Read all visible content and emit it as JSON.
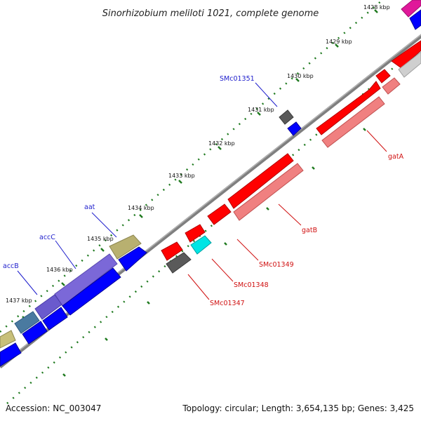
{
  "title": "Sinorhizobium meliloti 1021, complete genome",
  "footer": {
    "accession": "Accession: NC_003047",
    "summary": "Topology: circular; Length: 3,654,135 bp; Genes: 3,425"
  },
  "ticks": [
    "1428 kbp",
    "1429 kbp",
    "1430 kbp",
    "1431 kbp",
    "1432 kbp",
    "1433 kbp",
    "1434 kbp",
    "1435 kbp",
    "1436 kbp",
    "1437 kbp"
  ],
  "gene_labels": {
    "forward": [
      "SMc01351",
      "aat",
      "accC",
      "accB"
    ],
    "reverse": [
      "gatA",
      "gatB",
      "SMc01349",
      "SMc01348",
      "SMc01347"
    ]
  },
  "colors": {
    "backbone": "#8c8c8c",
    "tick": "#1f7a1f",
    "forward_label": "#1d1dcc",
    "reverse_label": "#d01010",
    "cds_forward": "#0000ff",
    "cds_reverse": "#ff0000"
  }
}
